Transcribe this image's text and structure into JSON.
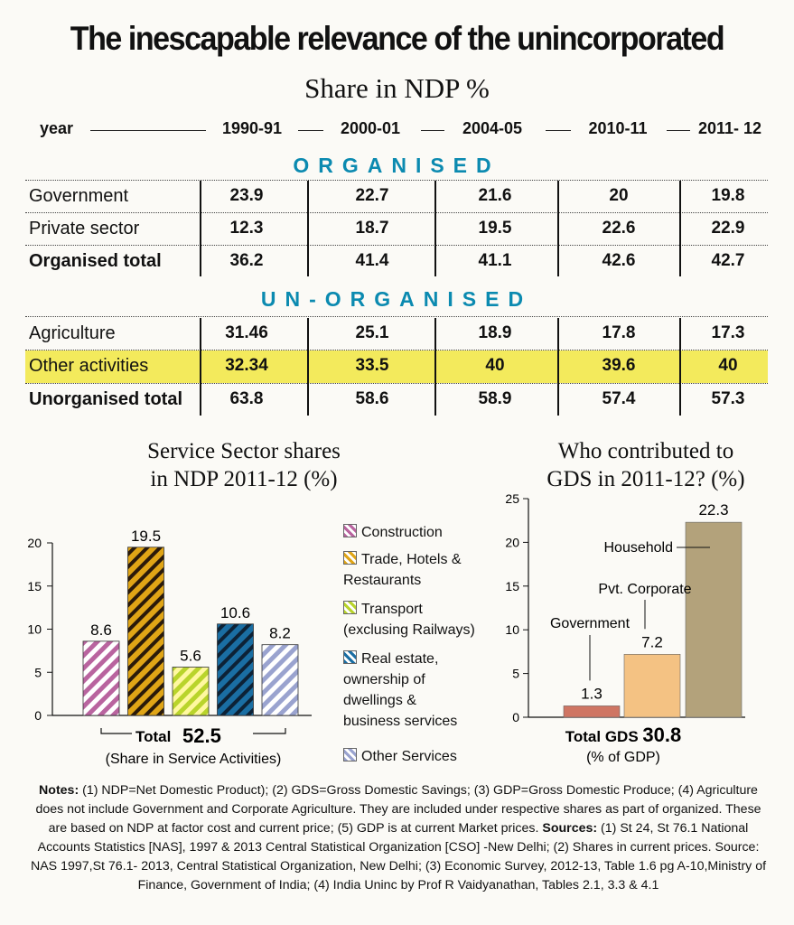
{
  "title": "The inescapable relevance of the unincorporated",
  "subtitle": "Share in NDP %",
  "table": {
    "year_label": "year",
    "years": [
      "1990-91",
      "2000-01",
      "2004-05",
      "2010-11",
      "2011- 12"
    ],
    "organised_heading": "ORGANISED",
    "organised_rows": [
      {
        "label": "Government",
        "values": [
          "23.9",
          "22.7",
          "21.6",
          "20",
          "19.8"
        ]
      },
      {
        "label": "Private sector",
        "values": [
          "12.3",
          "18.7",
          "19.5",
          "22.6",
          "22.9"
        ]
      },
      {
        "label": "Organised total",
        "values": [
          "36.2",
          "41.4",
          "41.1",
          "42.6",
          "42.7"
        ]
      }
    ],
    "unorganised_heading": "UN-ORGANISED",
    "unorganised_rows": [
      {
        "label": "Agriculture",
        "values": [
          "31.46",
          "25.1",
          "18.9",
          "17.8",
          "17.3"
        ]
      },
      {
        "label": "Other activities",
        "values": [
          "32.34",
          "33.5",
          "40",
          "39.6",
          "40"
        ]
      },
      {
        "label": "Unorganised total",
        "values": [
          "63.8",
          "58.6",
          "58.9",
          "57.4",
          "57.3"
        ]
      }
    ]
  },
  "chart_data": [
    {
      "type": "bar",
      "title": "Service Sector shares in NDP 2011-12 (%)",
      "title_lines": [
        "Service Sector shares",
        "in NDP 2011-12 (%)"
      ],
      "categories": [
        "Construction",
        "Trade, Hotels & Restaurants",
        "Transport (exclusing Railways)",
        "Real estate, ownership of dwellings & business services",
        "Other Services"
      ],
      "values": [
        8.6,
        19.5,
        5.6,
        10.6,
        8.2
      ],
      "value_labels": [
        "8.6",
        "19.5",
        "5.6",
        "10.6",
        "8.2"
      ],
      "colors": [
        "#b9649f",
        "#e0a516",
        "#b9d42b",
        "#1a6ea3",
        "#9aa3cf"
      ],
      "legend_lines": [
        [
          "Construction"
        ],
        [
          "Trade, Hotels &",
          "Restaurants"
        ],
        [
          "Transport",
          "(exclusing Railways)"
        ],
        [
          "Real estate,",
          "ownership of",
          "dwellings &",
          "business services"
        ],
        [
          "Other Services"
        ]
      ],
      "ylim": [
        0,
        20
      ],
      "yticks": [
        "0",
        "5",
        "10",
        "15",
        "20"
      ],
      "total_label": "Total",
      "total_value": "52.5",
      "total_note": "(Share in Service Activities)"
    },
    {
      "type": "bar",
      "title": "Who contributed to GDS in 2011-12? (%)",
      "title_lines": [
        "Who contributed to",
        "GDS in 2011-12? (%)"
      ],
      "categories": [
        "Government",
        "Pvt. Corporate",
        "Household"
      ],
      "values": [
        1.3,
        7.2,
        22.3
      ],
      "value_labels": [
        "1.3",
        "7.2",
        "22.3"
      ],
      "colors": [
        "#cf7563",
        "#f4c283",
        "#b3a27b"
      ],
      "ylim": [
        0,
        25
      ],
      "yticks": [
        "0",
        "5",
        "10",
        "15",
        "20",
        "25"
      ],
      "total_label": "Total GDS",
      "total_value": "30.8",
      "total_note": "(% of GDP)"
    }
  ],
  "notes": {
    "label_notes": "Notes:",
    "text_1": " (1) NDP=Net Domestic Product); (2) GDS=Gross Domestic Savings; (3) GDP=Gross Domestic Produce; (4) Agriculture does not include Government and Corporate Agriculture. They are included under respective shares as part of organized. These are based on NDP at factor cost and current price; (5) GDP is at current Market prices. ",
    "label_sources": "Sources:",
    "text_2": " (1) St 24, St 76.1 National Accounts Statistics [NAS], 1997 & 2013 Central Statistical Organization [CSO] -New Delhi; (2) Shares in current prices. Source: NAS 1997,St 76.1- 2013, Central Statistical Organization, New Delhi; (3) Economic  Survey,  2012-13,  Table  1.6 pg A-10,Ministry of Finance, Government of India; (4) India Uninc by Prof R Vaidyanathan, Tables 2.1, 3.3 & 4.1"
  }
}
